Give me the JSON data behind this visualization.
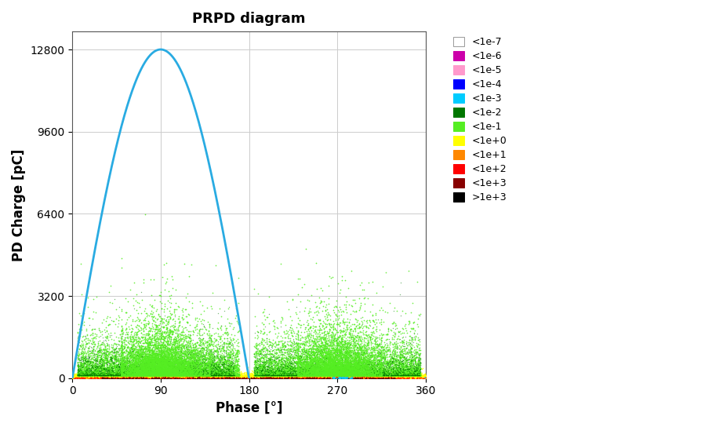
{
  "title": "PRPD diagram",
  "xlabel": "Phase [°]",
  "ylabel": "PD Charge [pC]",
  "xlim": [
    0,
    360
  ],
  "ylim": [
    0,
    13500
  ],
  "yticks": [
    0,
    3200,
    6400,
    9600,
    12800
  ],
  "xticks": [
    0,
    90,
    180,
    270,
    360
  ],
  "sine_color": "#29ABE2",
  "sine_amplitude": 12800,
  "bg_color": "#FFFFFF",
  "plot_bg_color": "#FFFFFF",
  "legend_labels": [
    "<1e-7",
    "<1e-6",
    "<1e-5",
    "<1e-4",
    "<1e-3",
    "<1e-2",
    "<1e-1",
    "<1e+0",
    "<1e+1",
    "<1e+2",
    "<1e+3",
    ">1e+3"
  ],
  "legend_colors": [
    "#FFFFFF",
    "#CC00AA",
    "#FF99CC",
    "#0000FF",
    "#00CCFF",
    "#007700",
    "#55EE22",
    "#FFFF00",
    "#FF8800",
    "#FF0000",
    "#880000",
    "#000000"
  ],
  "legend_edge_colors": [
    "#999999",
    "#CC00AA",
    "#FF99CC",
    "#0000FF",
    "#00CCFF",
    "#007700",
    "#55EE22",
    "#FFFF00",
    "#FF8800",
    "#FF0000",
    "#880000",
    "#000000"
  ],
  "scatter_seed": 42,
  "title_fontsize": 13,
  "label_fontsize": 12,
  "tick_fontsize": 10
}
